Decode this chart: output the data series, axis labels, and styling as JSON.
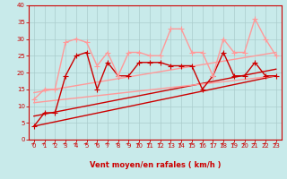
{
  "xlabel": "Vent moyen/en rafales ( km/h )",
  "background_color": "#c8eaea",
  "grid_color": "#aacccc",
  "xlim": [
    -0.5,
    23.5
  ],
  "ylim": [
    0,
    40
  ],
  "yticks": [
    0,
    5,
    10,
    15,
    20,
    25,
    30,
    35,
    40
  ],
  "xticks": [
    0,
    1,
    2,
    3,
    4,
    5,
    6,
    7,
    8,
    9,
    10,
    11,
    12,
    13,
    14,
    15,
    16,
    17,
    18,
    19,
    20,
    21,
    22,
    23
  ],
  "lines": [
    {
      "x": [
        0,
        1,
        2,
        3,
        4,
        5,
        6,
        7,
        8,
        9,
        10,
        11,
        12,
        13,
        14,
        15,
        16,
        17,
        18,
        19,
        20,
        21,
        22,
        23
      ],
      "y": [
        4,
        8,
        8,
        19,
        25,
        26,
        15,
        23,
        19,
        19,
        23,
        23,
        23,
        22,
        22,
        22,
        15,
        19,
        26,
        19,
        19,
        23,
        19,
        19
      ],
      "color": "#cc0000",
      "lw": 1.0,
      "marker": "P",
      "ms": 2.5
    },
    {
      "x": [
        0,
        1,
        2,
        3,
        4,
        5,
        6,
        7,
        8,
        9,
        10,
        11,
        12,
        13,
        14,
        15,
        16,
        17,
        18,
        19,
        20,
        21,
        22,
        23
      ],
      "y": [
        12,
        15,
        15,
        29,
        30,
        29,
        22,
        26,
        19,
        26,
        26,
        25,
        25,
        33,
        33,
        26,
        26,
        19,
        30,
        26,
        26,
        36,
        30,
        25
      ],
      "color": "#ff9999",
      "lw": 1.0,
      "marker": "P",
      "ms": 2.5
    },
    {
      "x": [
        0,
        23
      ],
      "y": [
        4,
        19
      ],
      "color": "#cc0000",
      "lw": 1.0,
      "marker": null,
      "ms": 0,
      "linestyle": "-"
    },
    {
      "x": [
        0,
        23
      ],
      "y": [
        7,
        21
      ],
      "color": "#cc0000",
      "lw": 1.0,
      "marker": null,
      "ms": 0,
      "linestyle": "-"
    },
    {
      "x": [
        0,
        23
      ],
      "y": [
        11,
        19
      ],
      "color": "#ff9999",
      "lw": 1.0,
      "marker": null,
      "ms": 0,
      "linestyle": "-"
    },
    {
      "x": [
        0,
        23
      ],
      "y": [
        14,
        26
      ],
      "color": "#ff9999",
      "lw": 1.0,
      "marker": null,
      "ms": 0,
      "linestyle": "-"
    }
  ],
  "wind_arrow_color": "#cc0000",
  "axis_color": "#cc0000",
  "tick_label_color": "#cc0000",
  "xlabel_color": "#cc0000",
  "xlabel_fontsize": 6,
  "tick_fontsize": 5
}
